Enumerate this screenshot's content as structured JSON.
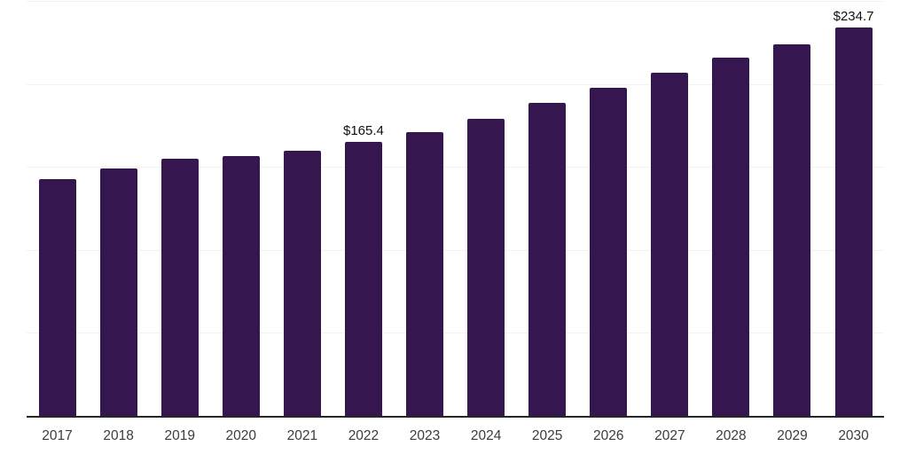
{
  "chart_data": {
    "type": "bar",
    "title": "",
    "xlabel": "",
    "ylabel": "",
    "categories": [
      "2017",
      "2018",
      "2019",
      "2020",
      "2021",
      "2022",
      "2023",
      "2024",
      "2025",
      "2026",
      "2027",
      "2028",
      "2029",
      "2030"
    ],
    "values": [
      143.3,
      149.6,
      155.2,
      157.1,
      160.5,
      165.4,
      171.7,
      179.6,
      189.0,
      198.2,
      207.5,
      216.5,
      224.4,
      234.7
    ],
    "value_labels": [
      "",
      "",
      "",
      "",
      "",
      "$165.4",
      "",
      "",
      "",
      "",
      "",
      "",
      "",
      "$234.7"
    ],
    "ylim": [
      0,
      250
    ],
    "gridline_step": 50,
    "grid": true,
    "legend_position": "none",
    "colors": {
      "bar": "#36164E",
      "gridline": "#f2f2f2",
      "axis_line": "#262626",
      "tick_label": "#3c3c3c",
      "value_label": "#111111",
      "background": "#ffffff"
    }
  }
}
